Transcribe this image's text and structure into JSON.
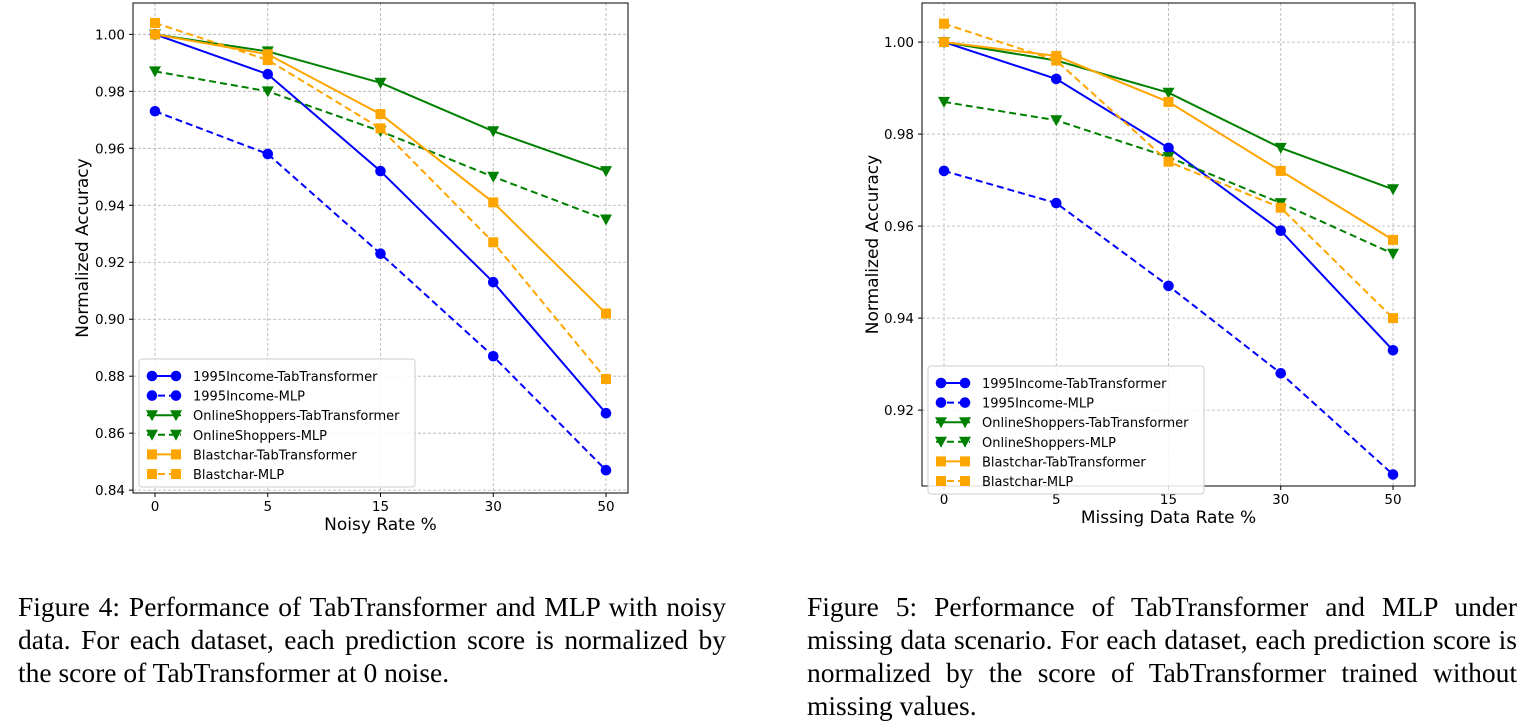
{
  "chart_data": [
    {
      "type": "line",
      "xlabel": "Noisy Rate %",
      "ylabel": "Normalized Accuracy",
      "categories": [
        "0",
        "5",
        "15",
        "30",
        "50"
      ],
      "ylim": [
        0.839,
        1.011
      ],
      "yticks": [
        "0.84",
        "0.86",
        "0.88",
        "0.90",
        "0.92",
        "0.94",
        "0.96",
        "0.98",
        "1.00"
      ],
      "grid": true,
      "legend_position": "bottom-left",
      "series": [
        {
          "name": "1995Income-TabTransformer",
          "color": "#0000ff",
          "dashed": false,
          "marker": "circle",
          "values": [
            1.0,
            0.986,
            0.952,
            0.913,
            0.867
          ]
        },
        {
          "name": "1995Income-MLP",
          "color": "#0000ff",
          "dashed": true,
          "marker": "circle",
          "values": [
            0.973,
            0.958,
            0.923,
            0.887,
            0.847
          ]
        },
        {
          "name": "OnlineShoppers-TabTransformer",
          "color": "#008000",
          "dashed": false,
          "marker": "triangle-down",
          "values": [
            1.0,
            0.994,
            0.983,
            0.966,
            0.952
          ]
        },
        {
          "name": "OnlineShoppers-MLP",
          "color": "#008000",
          "dashed": true,
          "marker": "triangle-down",
          "values": [
            0.987,
            0.98,
            0.966,
            0.95,
            0.935
          ]
        },
        {
          "name": "Blastchar-TabTransformer",
          "color": "#ffa500",
          "dashed": false,
          "marker": "square",
          "values": [
            1.0,
            0.993,
            0.972,
            0.941,
            0.902
          ]
        },
        {
          "name": "Blastchar-MLP",
          "color": "#ffa500",
          "dashed": true,
          "marker": "square",
          "values": [
            1.004,
            0.991,
            0.967,
            0.927,
            0.879
          ]
        }
      ]
    },
    {
      "type": "line",
      "xlabel": "Missing Data Rate %",
      "ylabel": "Normalized Accuracy",
      "categories": [
        "0",
        "5",
        "15",
        "30",
        "50"
      ],
      "ylim": [
        0.9035,
        1.0085
      ],
      "yticks": [
        "0.92",
        "0.94",
        "0.96",
        "0.98",
        "1.00"
      ],
      "grid": true,
      "legend_position": "bottom-left",
      "series": [
        {
          "name": "1995Income-TabTransformer",
          "color": "#0000ff",
          "dashed": false,
          "marker": "circle",
          "values": [
            1.0,
            0.992,
            0.977,
            0.959,
            0.933
          ]
        },
        {
          "name": "1995Income-MLP",
          "color": "#0000ff",
          "dashed": true,
          "marker": "circle",
          "values": [
            0.972,
            0.965,
            0.947,
            0.928,
            0.906
          ]
        },
        {
          "name": "OnlineShoppers-TabTransformer",
          "color": "#008000",
          "dashed": false,
          "marker": "triangle-down",
          "values": [
            1.0,
            0.996,
            0.989,
            0.977,
            0.968
          ]
        },
        {
          "name": "OnlineShoppers-MLP",
          "color": "#008000",
          "dashed": true,
          "marker": "triangle-down",
          "values": [
            0.987,
            0.983,
            0.975,
            0.965,
            0.954
          ]
        },
        {
          "name": "Blastchar-TabTransformer",
          "color": "#ffa500",
          "dashed": false,
          "marker": "square",
          "values": [
            1.0,
            0.997,
            0.987,
            0.972,
            0.957
          ]
        },
        {
          "name": "Blastchar-MLP",
          "color": "#ffa500",
          "dashed": true,
          "marker": "square",
          "values": [
            1.004,
            0.996,
            0.974,
            0.964,
            0.94
          ]
        }
      ]
    }
  ],
  "captions": {
    "fig4": "Figure 4: Performance of TabTransformer and MLP with noisy data. For each dataset, each prediction score is normalized by the score of TabTransformer at 0 noise.",
    "fig5": "Figure 5: Performance of TabTransformer and MLP under missing data scenario. For each dataset, each prediction score is normalized by the score of TabTransformer trained without missing values."
  }
}
